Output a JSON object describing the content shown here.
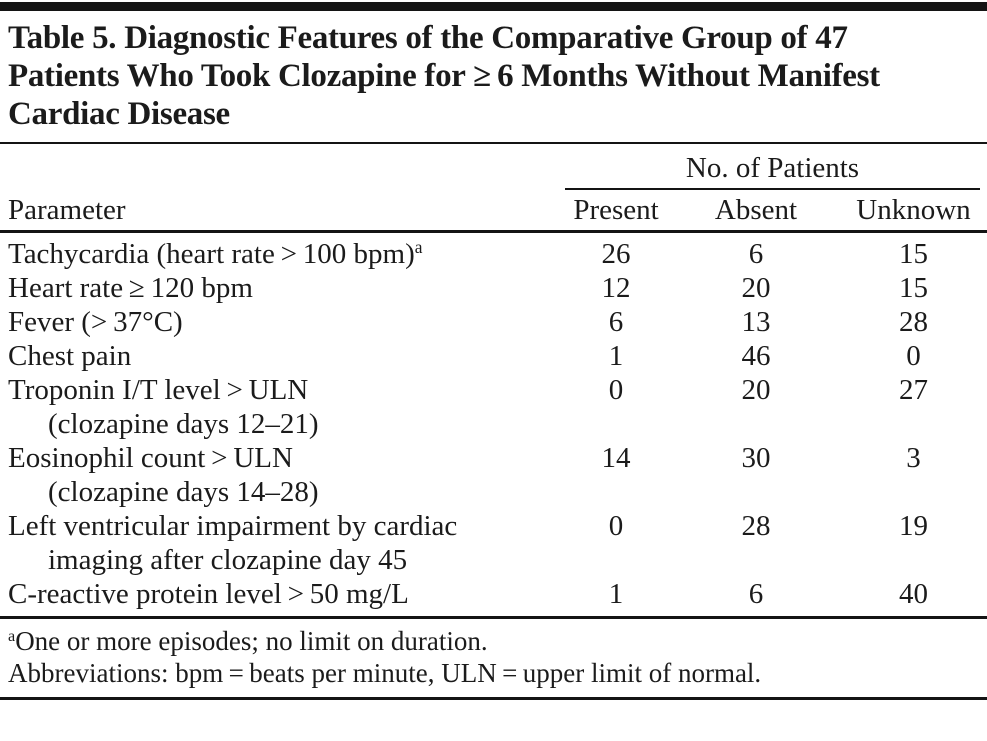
{
  "title_lines": [
    "Table 5. Diagnostic Features of the Comparative Group of 47",
    "Patients Who Took Clozapine for ≥ 6 Months Without Manifest",
    "Cardiac Disease"
  ],
  "table": {
    "spanner_header": "No. of Patients",
    "parameter_header": "Parameter",
    "value_headers": [
      "Present",
      "Absent",
      "Unknown"
    ],
    "rows": [
      {
        "param": "Tachycardia (heart rate > 100 bpm)",
        "sup": "a",
        "present": "26",
        "absent": "6",
        "unknown": "15"
      },
      {
        "param": "Heart rate ≥ 120 bpm",
        "present": "12",
        "absent": "20",
        "unknown": "15"
      },
      {
        "param": "Fever (> 37°C)",
        "present": "6",
        "absent": "13",
        "unknown": "28"
      },
      {
        "param": "Chest pain",
        "present": "1",
        "absent": "46",
        "unknown": "0"
      },
      {
        "param": "Troponin I/T level > ULN",
        "line2": "(clozapine days 12–21)",
        "present": "0",
        "absent": "20",
        "unknown": "27"
      },
      {
        "param": "Eosinophil count > ULN",
        "line2": "(clozapine days 14–28)",
        "present": "14",
        "absent": "30",
        "unknown": "3"
      },
      {
        "param": "Left ventricular impairment by cardiac",
        "line2": "imaging after clozapine day 45",
        "present": "0",
        "absent": "28",
        "unknown": "19"
      },
      {
        "param": "C-reactive protein level > 50 mg/L",
        "present": "1",
        "absent": "6",
        "unknown": "40"
      }
    ],
    "footnotes": [
      {
        "sup": "a",
        "text": "One or more episodes; no limit on duration."
      },
      {
        "sup": "",
        "text": "Abbreviations: bpm = beats per minute, ULN = upper limit of normal."
      }
    ]
  },
  "colors": {
    "background": "#ffffff",
    "text": "#1b1b1b",
    "rule": "#141414"
  }
}
